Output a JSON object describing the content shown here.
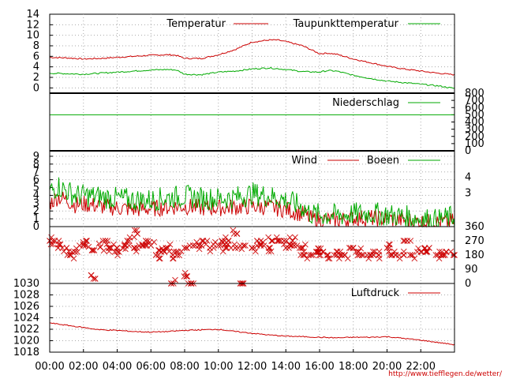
{
  "footer": {
    "url_text": "http://www.tiefflegen.de/wetter/"
  },
  "colors": {
    "red": "#cc0000",
    "green": "#00aa00",
    "grid": "#aaaaaa",
    "frame": "#000000"
  },
  "chart_data": [
    {
      "id": "temperature",
      "type": "line",
      "ylim": [
        -1,
        14
      ],
      "y_ticks": [
        "14",
        "12",
        "10",
        "8",
        "6",
        "4",
        "2",
        "0"
      ],
      "y_tick_values": [
        14,
        12,
        10,
        8,
        6,
        4,
        2,
        0
      ],
      "grid": true,
      "legend_placement": "top-right",
      "series": [
        {
          "name": "Temperatur",
          "color": "#cc0000",
          "x_hours": [
            0,
            1,
            2,
            3,
            4,
            5,
            6,
            7,
            7.5,
            8,
            9,
            10,
            11,
            12,
            13,
            13.5,
            14,
            15,
            16,
            16.5,
            17,
            18,
            19,
            20,
            21,
            22,
            23,
            24
          ],
          "values": [
            5.8,
            5.7,
            5.5,
            5.6,
            5.8,
            6.0,
            6.2,
            6.3,
            6.2,
            5.6,
            5.6,
            6.3,
            7.3,
            8.7,
            9.1,
            9.1,
            8.8,
            8.0,
            6.5,
            6.6,
            6.4,
            5.5,
            4.8,
            4.1,
            3.6,
            3.2,
            2.8,
            2.5
          ]
        },
        {
          "name": "Taupunkttemperatur",
          "color": "#00aa00",
          "x_hours": [
            0,
            1,
            2,
            3,
            4,
            5,
            6,
            7,
            7.5,
            8,
            9,
            10,
            11,
            12,
            13,
            14,
            15,
            16,
            16.5,
            17,
            18,
            19,
            20,
            21,
            22,
            23,
            24
          ],
          "values": [
            2.8,
            2.7,
            2.6,
            2.8,
            3.0,
            3.2,
            3.4,
            3.5,
            3.4,
            2.6,
            2.5,
            3.0,
            3.2,
            3.6,
            3.8,
            3.5,
            3.1,
            3.0,
            3.3,
            3.2,
            2.4,
            1.8,
            1.3,
            1.0,
            0.7,
            0.4,
            -0.1
          ]
        }
      ]
    },
    {
      "id": "precipitation",
      "type": "line",
      "ylim": [
        0,
        800
      ],
      "y_ticks": [
        "800",
        "700",
        "600",
        "500",
        "400",
        "300",
        "200",
        "100",
        "0"
      ],
      "y_tick_values": [
        800,
        700,
        600,
        500,
        400,
        300,
        200,
        100,
        0
      ],
      "y_axis_side": "right",
      "legend_placement": "top-right",
      "series": [
        {
          "name": "Niederschlag",
          "color": "#00aa00",
          "x_hours": [
            0,
            24
          ],
          "values": [
            500,
            500
          ]
        }
      ]
    },
    {
      "id": "wind",
      "type": "line",
      "ylim": [
        0,
        9.7
      ],
      "y_ticks": [
        "9",
        "8",
        "7",
        "6",
        "5",
        "4",
        "3",
        "2",
        "1",
        "0"
      ],
      "y_tick_values": [
        9,
        8,
        7,
        6,
        5,
        4,
        3,
        2,
        1,
        0
      ],
      "right_ticks": [
        "4",
        "3"
      ],
      "right_tick_values": [
        6.3,
        4.3
      ],
      "grid": true,
      "legend_placement": "top-right",
      "series": [
        {
          "name": "Wind",
          "color": "#cc0000",
          "x_hours": [
            0,
            0.5,
            1,
            1.5,
            2,
            3,
            4,
            5,
            6,
            7,
            8,
            9,
            10,
            11,
            12,
            13,
            14,
            15,
            15.5,
            16,
            17,
            18,
            19,
            20,
            21,
            22,
            23,
            24
          ],
          "values": [
            3.0,
            3.8,
            3.4,
            2.8,
            2.9,
            2.6,
            2.4,
            2.2,
            2.3,
            2.5,
            2.6,
            2.4,
            2.4,
            2.5,
            2.6,
            2.5,
            2.2,
            1.6,
            1.0,
            0.9,
            0.8,
            1.1,
            1.1,
            1.0,
            0.8,
            0.6,
            0.5,
            0.7
          ]
        },
        {
          "name": "Boeen",
          "color": "#00aa00",
          "x_hours": [
            0,
            0.5,
            1,
            1.5,
            2,
            3,
            4,
            5,
            6,
            7,
            8,
            9,
            10,
            11,
            12,
            13,
            14,
            15,
            15.5,
            16,
            17,
            18,
            19,
            20,
            21,
            22,
            23,
            24
          ],
          "values": [
            4.5,
            5.2,
            4.6,
            4.0,
            4.0,
            3.8,
            3.6,
            3.4,
            3.4,
            3.7,
            3.9,
            3.6,
            3.6,
            3.7,
            4.2,
            3.9,
            3.4,
            2.5,
            1.6,
            1.5,
            1.4,
            1.6,
            1.7,
            1.5,
            1.3,
            1.0,
            0.8,
            1.3
          ]
        }
      ]
    },
    {
      "id": "wind_direction",
      "type": "scatter",
      "ylim": [
        0,
        360
      ],
      "y_ticks": [
        "360",
        "270",
        "180",
        "90",
        "0"
      ],
      "y_tick_values": [
        360,
        270,
        180,
        90,
        0
      ],
      "y_axis_side": "right",
      "grid": true,
      "series": [
        {
          "name": "",
          "color": "#cc0000",
          "x_hours": [
            0,
            0.5,
            1,
            1.5,
            2,
            2.5,
            3,
            3.5,
            4,
            4.5,
            5,
            5.5,
            6,
            6.5,
            7,
            7.5,
            8,
            8.5,
            9,
            9.5,
            10,
            10.5,
            11,
            11.5,
            12,
            12.5,
            13,
            13.5,
            14,
            14.5,
            15,
            15.5,
            16,
            16.5,
            17,
            17.5,
            18,
            18.5,
            19,
            19.5,
            20,
            20.5,
            21,
            21.5,
            22,
            22.5,
            23,
            23.5,
            24
          ],
          "values": [
            270,
            225,
            225,
            200,
            240,
            210,
            230,
            225,
            225,
            240,
            225,
            240,
            240,
            210,
            225,
            200,
            225,
            240,
            240,
            225,
            240,
            225,
            225,
            240,
            225,
            240,
            225,
            270,
            225,
            240,
            225,
            180,
            200,
            180,
            180,
            180,
            225,
            180,
            180,
            180,
            225,
            180,
            180,
            180,
            200,
            225,
            180,
            200,
            180
          ]
        },
        {
          "name": "",
          "color": "#cc0000",
          "x_hours": [
            0.3,
            1.2,
            2.2,
            2.7,
            3.3,
            4.1,
            4.6,
            5.2,
            5.7,
            6.3,
            6.8,
            7.2,
            7.3,
            8.1,
            8.4,
            9.1,
            10.2,
            10.6,
            11.1,
            11.3,
            12.3,
            13.2,
            13.9,
            14.4,
            15.1,
            15.8,
            16.2,
            17.2,
            18.3,
            19.2,
            20.3,
            21.2,
            22.3,
            23.2
          ],
          "values": [
            270,
            180,
            270,
            30,
            270,
            200,
            270,
            315,
            270,
            180,
            200,
            0,
            180,
            45,
            0,
            270,
            270,
            270,
            315,
            0,
            270,
            270,
            270,
            270,
            180,
            200,
            200,
            180,
            200,
            180,
            180,
            270,
            200,
            180
          ]
        }
      ]
    },
    {
      "id": "pressure",
      "type": "line",
      "ylim": [
        1018,
        1030
      ],
      "y_ticks": [
        "1030",
        "1028",
        "1026",
        "1024",
        "1022",
        "1020",
        "1018"
      ],
      "y_tick_values": [
        1030,
        1028,
        1026,
        1024,
        1022,
        1020,
        1018
      ],
      "x_ticks": [
        "00:00",
        "02:00",
        "04:00",
        "06:00",
        "08:00",
        "10:00",
        "12:00",
        "14:00",
        "16:00",
        "18:00",
        "20:00",
        "22:00"
      ],
      "x_tick_hours": [
        0,
        2,
        4,
        6,
        8,
        10,
        12,
        14,
        16,
        18,
        20,
        22
      ],
      "grid": true,
      "legend_placement": "top-right",
      "series": [
        {
          "name": "Luftdruck",
          "color": "#cc0000",
          "x_hours": [
            0,
            1,
            2,
            3,
            4,
            5,
            6,
            7,
            8,
            9,
            10,
            11,
            12,
            13,
            14,
            15,
            16,
            17,
            18,
            19,
            20,
            21,
            22,
            23,
            24
          ],
          "values": [
            1023.1,
            1022.7,
            1022.3,
            1021.9,
            1021.8,
            1021.6,
            1021.5,
            1021.6,
            1021.8,
            1021.9,
            1022.0,
            1021.6,
            1021.3,
            1021.0,
            1020.8,
            1020.7,
            1020.6,
            1020.5,
            1020.6,
            1020.6,
            1020.7,
            1020.4,
            1020.1,
            1019.7,
            1019.3
          ]
        }
      ]
    }
  ]
}
